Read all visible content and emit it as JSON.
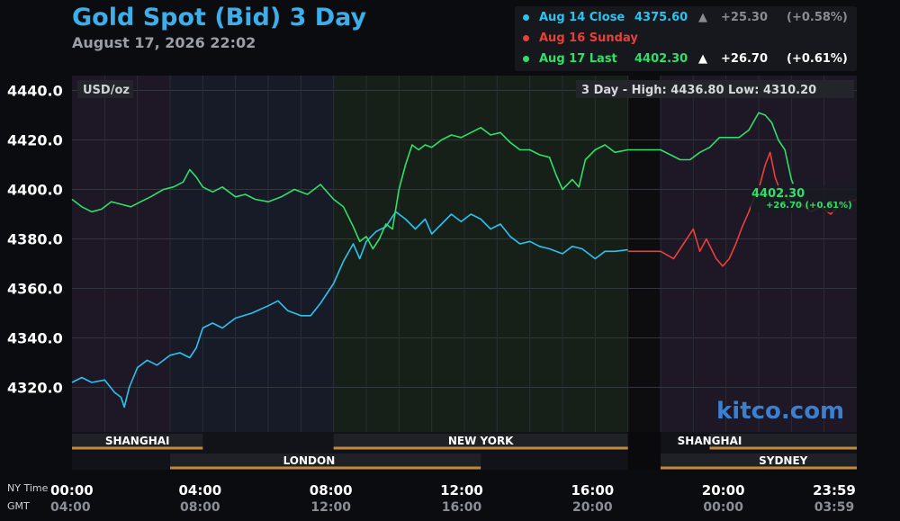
{
  "header": {
    "title": "Gold Spot (Bid) 3 Day",
    "date": "August 17, 2026 22:02"
  },
  "legend": [
    {
      "label": "Aug 14 Close",
      "value": "4375.60",
      "arrow": "▲",
      "change": "+25.30",
      "pct": "(+0.58%)",
      "color": "#2cc2f0",
      "value_color": "#2cc2f0",
      "dim": true
    },
    {
      "label": "Aug 16 Sunday",
      "value": "",
      "arrow": "",
      "change": "",
      "pct": "",
      "color": "#e84038",
      "value_color": "#e84038",
      "dim": false
    },
    {
      "label": "Aug 17 Last",
      "value": "4402.30",
      "arrow": "▲",
      "change": "+26.70",
      "pct": "(+0.61%)",
      "color": "#2ee06a",
      "value_color": "#2ee06a",
      "dim": false
    }
  ],
  "chart_data": {
    "type": "line",
    "title": "Gold Spot (Bid) 3 Day",
    "ylabel": "USD/oz",
    "unit_label": "USD/oz",
    "ylim": [
      4302,
      4446
    ],
    "yticks": [
      "4440.0",
      "4420.0",
      "4400.0",
      "4380.0",
      "4360.0",
      "4340.0",
      "4320.0"
    ],
    "ytick_values": [
      4440,
      4420,
      4400,
      4380,
      4360,
      4340,
      4320
    ],
    "xlim_hours": [
      0,
      24
    ],
    "x_ticks_ny": [
      "00:00",
      "04:00",
      "08:00",
      "12:00",
      "16:00",
      "20:00",
      "23:59"
    ],
    "x_ticks_gmt": [
      "04:00",
      "08:00",
      "12:00",
      "16:00",
      "20:00",
      "00:00",
      "03:59"
    ],
    "x_tick_hours": [
      0,
      4,
      8,
      12,
      16,
      20,
      24
    ],
    "x_axis_labels": {
      "ny": "NY Time",
      "gmt": "GMT"
    },
    "range_text": "3 Day - High: 4436.80  Low: 4310.20",
    "last_label": {
      "value": "4402.30",
      "change": "+26.70 (+0.61%)"
    },
    "sessions": [
      {
        "name": "SHANGHAI",
        "start": 0,
        "end": 4,
        "row": 1
      },
      {
        "name": "LONDON",
        "start": 3,
        "end": 12.5,
        "row": 2
      },
      {
        "name": "NEW YORK",
        "start": 8,
        "end": 17,
        "row": 1
      },
      {
        "name": "SHANGHAI",
        "start": 19.5,
        "end": 24,
        "row": 1
      },
      {
        "name": "SYDNEY",
        "start": 18,
        "end": 24,
        "row": 2
      }
    ],
    "session_label": {
      "SHANGHAI": [
        2,
        19.5
      ],
      "LONDON": [
        7.25
      ],
      "NEW YORK": [
        12.5
      ],
      "SYDNEY": [
        21.75
      ]
    },
    "series": [
      {
        "name": "Aug 14 Close",
        "color": "#2cc2f0",
        "points": [
          [
            0,
            4322
          ],
          [
            0.3,
            4324
          ],
          [
            0.6,
            4322
          ],
          [
            1,
            4323
          ],
          [
            1.3,
            4318
          ],
          [
            1.5,
            4316
          ],
          [
            1.6,
            4312
          ],
          [
            1.75,
            4320
          ],
          [
            2,
            4328
          ],
          [
            2.3,
            4331
          ],
          [
            2.6,
            4329
          ],
          [
            3,
            4333
          ],
          [
            3.3,
            4334
          ],
          [
            3.6,
            4332
          ],
          [
            3.8,
            4336
          ],
          [
            4,
            4344
          ],
          [
            4.3,
            4346
          ],
          [
            4.6,
            4344
          ],
          [
            5,
            4348
          ],
          [
            5.5,
            4350
          ],
          [
            6,
            4353
          ],
          [
            6.3,
            4355
          ],
          [
            6.6,
            4351
          ],
          [
            7,
            4349
          ],
          [
            7.3,
            4349
          ],
          [
            7.6,
            4354
          ],
          [
            8,
            4362
          ],
          [
            8.3,
            4371
          ],
          [
            8.6,
            4378
          ],
          [
            8.8,
            4372
          ],
          [
            9,
            4379
          ],
          [
            9.3,
            4383
          ],
          [
            9.6,
            4385
          ],
          [
            9.9,
            4391
          ],
          [
            10.2,
            4388
          ],
          [
            10.5,
            4384
          ],
          [
            10.8,
            4388
          ],
          [
            11,
            4382
          ],
          [
            11.3,
            4386
          ],
          [
            11.6,
            4390
          ],
          [
            11.9,
            4387
          ],
          [
            12.2,
            4390
          ],
          [
            12.5,
            4388
          ],
          [
            12.8,
            4384
          ],
          [
            13.1,
            4386
          ],
          [
            13.4,
            4381
          ],
          [
            13.7,
            4378
          ],
          [
            14,
            4379
          ],
          [
            14.3,
            4377
          ],
          [
            14.6,
            4376
          ],
          [
            15,
            4374
          ],
          [
            15.3,
            4377
          ],
          [
            15.6,
            4376
          ],
          [
            16,
            4372
          ],
          [
            16.3,
            4375
          ],
          [
            16.6,
            4375
          ],
          [
            17,
            4375.6
          ]
        ]
      },
      {
        "name": "Aug 16 Sunday",
        "color": "#e84038",
        "points": [
          [
            17,
            4375
          ],
          [
            18,
            4375
          ],
          [
            18.4,
            4372
          ],
          [
            18.7,
            4378
          ],
          [
            19,
            4384
          ],
          [
            19.2,
            4375
          ],
          [
            19.4,
            4380
          ],
          [
            19.7,
            4372
          ],
          [
            19.9,
            4369
          ],
          [
            20.1,
            4372
          ],
          [
            20.3,
            4378
          ],
          [
            20.5,
            4385
          ],
          [
            20.7,
            4391
          ],
          [
            20.9,
            4398
          ],
          [
            21,
            4400
          ],
          [
            21.2,
            4410
          ],
          [
            21.35,
            4415
          ],
          [
            21.5,
            4405
          ],
          [
            21.7,
            4398
          ],
          [
            22,
            4395
          ],
          [
            22.3,
            4394
          ],
          [
            22.6,
            4391
          ],
          [
            22.9,
            4393
          ],
          [
            23.2,
            4390
          ],
          [
            23.5,
            4394
          ],
          [
            24,
            4396
          ]
        ]
      },
      {
        "name": "Aug 17 Last",
        "color": "#2ee06a",
        "points": [
          [
            0,
            4396
          ],
          [
            0.3,
            4393
          ],
          [
            0.6,
            4391
          ],
          [
            0.9,
            4392
          ],
          [
            1.2,
            4395
          ],
          [
            1.5,
            4394
          ],
          [
            1.8,
            4393
          ],
          [
            2.1,
            4395
          ],
          [
            2.4,
            4397
          ],
          [
            2.8,
            4400
          ],
          [
            3.1,
            4401
          ],
          [
            3.4,
            4403
          ],
          [
            3.6,
            4408
          ],
          [
            3.8,
            4405
          ],
          [
            4,
            4401
          ],
          [
            4.3,
            4399
          ],
          [
            4.6,
            4401
          ],
          [
            5,
            4397
          ],
          [
            5.3,
            4398
          ],
          [
            5.6,
            4396
          ],
          [
            6,
            4395
          ],
          [
            6.4,
            4397
          ],
          [
            6.8,
            4400
          ],
          [
            7.2,
            4398
          ],
          [
            7.6,
            4402
          ],
          [
            8,
            4396
          ],
          [
            8.3,
            4393
          ],
          [
            8.6,
            4385
          ],
          [
            8.8,
            4379
          ],
          [
            9,
            4381
          ],
          [
            9.2,
            4376
          ],
          [
            9.4,
            4380
          ],
          [
            9.6,
            4386
          ],
          [
            9.8,
            4384
          ],
          [
            10,
            4400
          ],
          [
            10.2,
            4410
          ],
          [
            10.4,
            4418
          ],
          [
            10.6,
            4416
          ],
          [
            10.8,
            4418
          ],
          [
            11,
            4417
          ],
          [
            11.3,
            4420
          ],
          [
            11.6,
            4422
          ],
          [
            11.9,
            4421
          ],
          [
            12.2,
            4423
          ],
          [
            12.5,
            4425
          ],
          [
            12.8,
            4422
          ],
          [
            13.1,
            4423
          ],
          [
            13.4,
            4419
          ],
          [
            13.7,
            4416
          ],
          [
            14,
            4416
          ],
          [
            14.3,
            4414
          ],
          [
            14.6,
            4413
          ],
          [
            14.8,
            4406
          ],
          [
            15,
            4400
          ],
          [
            15.3,
            4404
          ],
          [
            15.5,
            4401
          ],
          [
            15.7,
            4412
          ],
          [
            16,
            4416
          ],
          [
            16.3,
            4418
          ],
          [
            16.6,
            4415
          ],
          [
            17,
            4416
          ],
          [
            18,
            4416
          ],
          [
            18.3,
            4414
          ],
          [
            18.6,
            4412
          ],
          [
            18.9,
            4412
          ],
          [
            19.2,
            4415
          ],
          [
            19.5,
            4417
          ],
          [
            19.8,
            4421
          ],
          [
            20.1,
            4421
          ],
          [
            20.4,
            4421
          ],
          [
            20.7,
            4424
          ],
          [
            21,
            4431
          ],
          [
            21.2,
            4430
          ],
          [
            21.4,
            4427
          ],
          [
            21.6,
            4420
          ],
          [
            21.8,
            4416
          ],
          [
            22,
            4404
          ],
          [
            22.05,
            4402.3
          ]
        ]
      }
    ]
  },
  "logo": "kitco.com"
}
